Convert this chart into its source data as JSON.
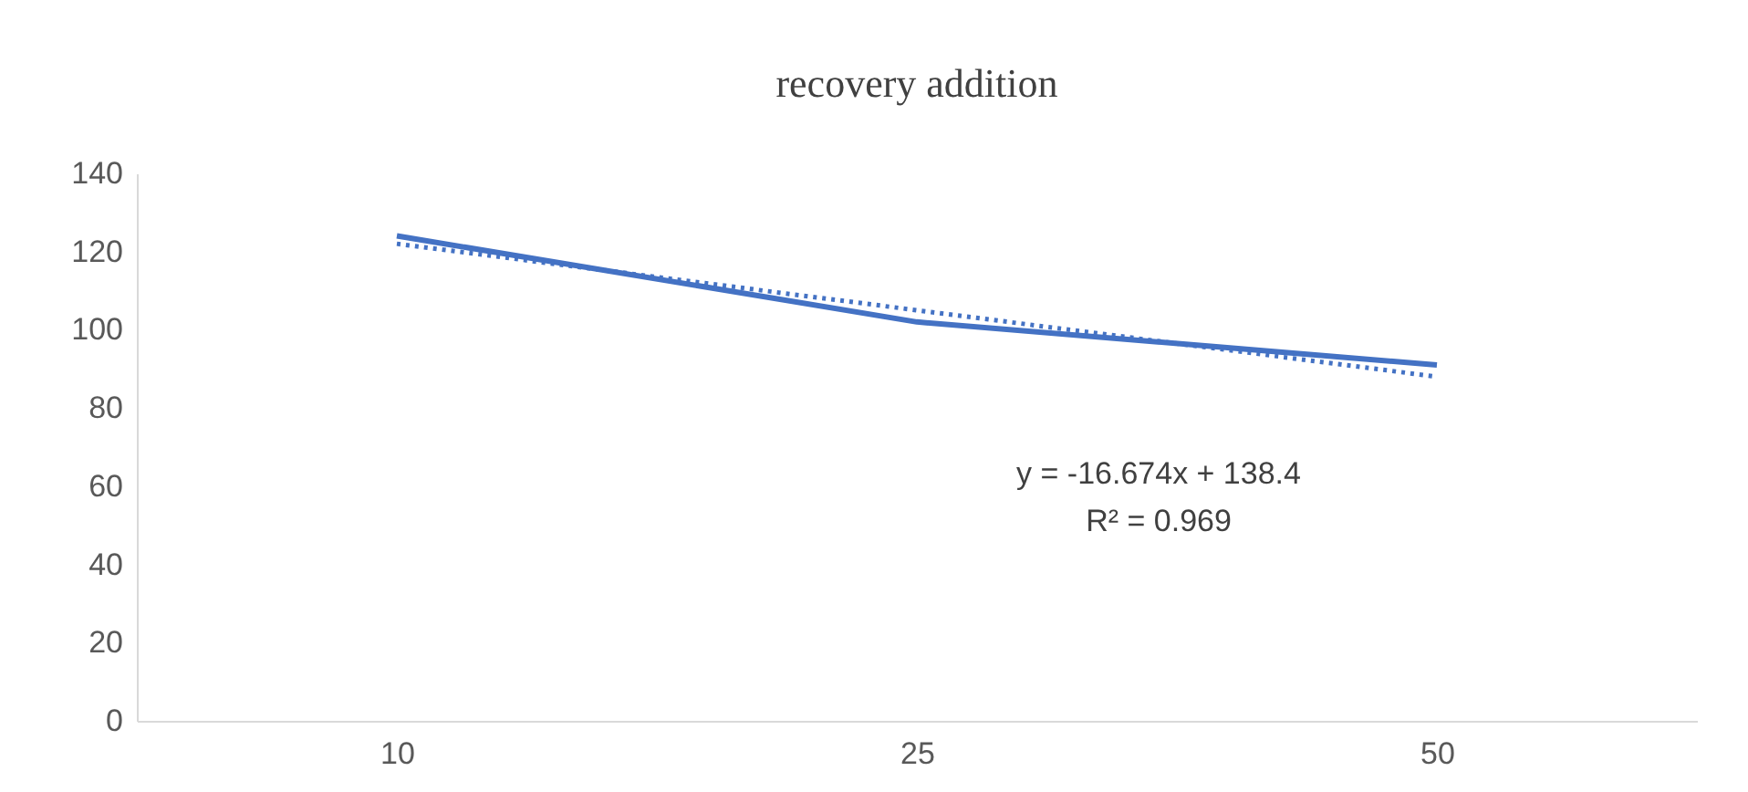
{
  "chart_data": {
    "type": "line",
    "title": "recovery addition",
    "categories": [
      "10",
      "25",
      "50"
    ],
    "series": [
      {
        "color": "#4472c4",
        "values": [
          124,
          102,
          91
        ],
        "line_style": "solid"
      },
      {
        "color": "#4472c4",
        "values": [
          122,
          105,
          88
        ],
        "line_style": "dotted"
      }
    ],
    "ylim": [
      0,
      140
    ],
    "yticks": [
      0,
      20,
      40,
      60,
      80,
      100,
      120,
      140
    ],
    "annotations": [
      "y = -16.674x + 138.4",
      "R² = 0.969"
    ],
    "grid": false,
    "marker": "none"
  }
}
